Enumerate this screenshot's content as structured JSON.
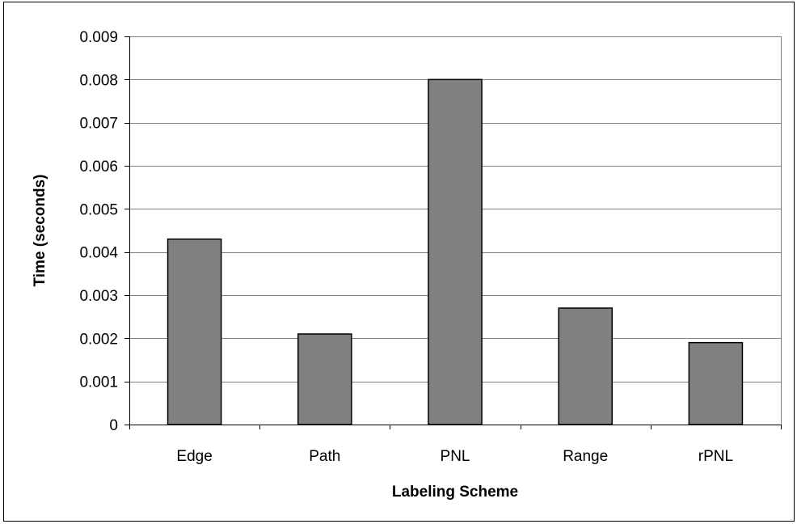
{
  "chart_data": {
    "type": "bar",
    "title": "",
    "xlabel": "Labeling Scheme",
    "ylabel": "Time (seconds)",
    "categories": [
      "Edge",
      "Path",
      "PNL",
      "Range",
      "rPNL"
    ],
    "values": [
      0.0043,
      0.0021,
      0.008,
      0.0027,
      0.0019
    ],
    "ylim": [
      0,
      0.009
    ],
    "yticks": [
      "0",
      "0.001",
      "0.002",
      "0.003",
      "0.004",
      "0.005",
      "0.006",
      "0.007",
      "0.008",
      "0.009"
    ],
    "grid": true,
    "legend": "none",
    "colors": {
      "bar_fill": "#808080",
      "bar_stroke": "#000000",
      "grid": "#808080",
      "plot_border": "#808080",
      "axis": "#000000"
    }
  }
}
